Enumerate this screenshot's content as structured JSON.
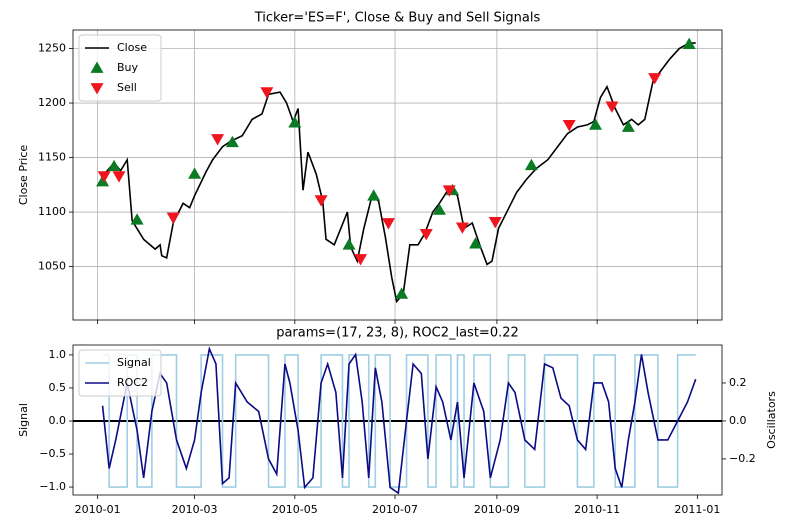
{
  "chart_data": [
    {
      "type": "line",
      "title": "Ticker='ES=F', Close & Buy and Sell Signals",
      "ylabel": "Close Price",
      "xlim": [
        "2009-12-17",
        "2011-01-16"
      ],
      "ylim": [
        1001,
        1267
      ],
      "xticks": [
        "2010-01-01",
        "2010-03-01",
        "2010-05-01",
        "2010-07-01",
        "2010-09-01",
        "2010-11-01",
        "2011-01-01"
      ],
      "yticks": [
        1050,
        1100,
        1150,
        1200,
        1250
      ],
      "grid": true,
      "legend": "upper left",
      "series": [
        {
          "name": "Close",
          "color": "#000000",
          "x": [
            "2010-01-04",
            "2010-01-11",
            "2010-01-15",
            "2010-01-19",
            "2010-01-22",
            "2010-01-29",
            "2010-02-05",
            "2010-02-08",
            "2010-02-09",
            "2010-02-12",
            "2010-02-16",
            "2010-02-22",
            "2010-02-26",
            "2010-03-01",
            "2010-03-08",
            "2010-03-12",
            "2010-03-18",
            "2010-03-23",
            "2010-03-30",
            "2010-04-05",
            "2010-04-11",
            "2010-04-15",
            "2010-04-22",
            "2010-04-26",
            "2010-04-30",
            "2010-05-03",
            "2010-05-06",
            "2010-05-09",
            "2010-05-14",
            "2010-05-18",
            "2010-05-20",
            "2010-05-25",
            "2010-05-29",
            "2010-06-02",
            "2010-06-04",
            "2010-06-08",
            "2010-06-12",
            "2010-06-17",
            "2010-06-21",
            "2010-06-25",
            "2010-06-29",
            "2010-07-02",
            "2010-07-06",
            "2010-07-10",
            "2010-07-15",
            "2010-07-19",
            "2010-07-24",
            "2010-07-28",
            "2010-08-03",
            "2010-08-08",
            "2010-08-12",
            "2010-08-17",
            "2010-08-22",
            "2010-08-26",
            "2010-08-29",
            "2010-09-02",
            "2010-09-07",
            "2010-09-13",
            "2010-09-19",
            "2010-09-25",
            "2010-10-02",
            "2010-10-08",
            "2010-10-14",
            "2010-10-20",
            "2010-10-26",
            "2010-10-30",
            "2010-11-03",
            "2010-11-07",
            "2010-11-12",
            "2010-11-17",
            "2010-11-22",
            "2010-11-26",
            "2010-11-30",
            "2010-12-05",
            "2010-12-09",
            "2010-12-15",
            "2010-12-21",
            "2010-12-27",
            "2010-12-31"
          ],
          "values": [
            1133,
            1145,
            1138,
            1148,
            1092,
            1075,
            1066,
            1070,
            1060,
            1058,
            1090,
            1108,
            1104,
            1115,
            1137,
            1148,
            1160,
            1165,
            1170,
            1185,
            1190,
            1208,
            1210,
            1200,
            1183,
            1195,
            1120,
            1155,
            1135,
            1110,
            1075,
            1070,
            1085,
            1100,
            1068,
            1055,
            1085,
            1115,
            1110,
            1078,
            1040,
            1018,
            1025,
            1070,
            1070,
            1080,
            1100,
            1108,
            1122,
            1115,
            1085,
            1090,
            1068,
            1052,
            1055,
            1085,
            1100,
            1118,
            1130,
            1140,
            1148,
            1160,
            1172,
            1178,
            1180,
            1183,
            1205,
            1215,
            1195,
            1180,
            1185,
            1180,
            1185,
            1220,
            1228,
            1240,
            1250,
            1255,
            1255
          ]
        },
        {
          "name": "Buy",
          "color": "#0a7a23",
          "marker": "^",
          "x": [
            "2010-01-04",
            "2010-01-11",
            "2010-01-25",
            "2010-03-01",
            "2010-03-24",
            "2010-05-01",
            "2010-06-03",
            "2010-06-18",
            "2010-07-05",
            "2010-07-28",
            "2010-08-05",
            "2010-08-19",
            "2010-09-22",
            "2010-10-31",
            "2010-11-20",
            "2010-12-27"
          ],
          "values": [
            1128,
            1142,
            1093,
            1135,
            1164,
            1182,
            1070,
            1115,
            1025,
            1102,
            1120,
            1071,
            1143,
            1180,
            1178,
            1254
          ]
        },
        {
          "name": "Sell",
          "color": "#f0141e",
          "marker": "v",
          "x": [
            "2010-01-05",
            "2010-01-14",
            "2010-02-16",
            "2010-03-15",
            "2010-04-14",
            "2010-05-17",
            "2010-06-10",
            "2010-06-27",
            "2010-07-20",
            "2010-08-03",
            "2010-08-11",
            "2010-08-31",
            "2010-10-15",
            "2010-11-10",
            "2010-12-06"
          ],
          "values": [
            1133,
            1133,
            1095,
            1167,
            1210,
            1111,
            1057,
            1090,
            1080,
            1120,
            1086,
            1091,
            1180,
            1197,
            1223
          ]
        }
      ]
    },
    {
      "type": "line",
      "title": "params=(17, 23, 8), ROC2_last=0.22",
      "ylabel": "Signal",
      "y2label": "Oscillators",
      "xlim": [
        "2009-12-17",
        "2011-01-16"
      ],
      "ylim": [
        -1.12,
        1.15
      ],
      "y2lim": [
        -0.39,
        0.4
      ],
      "xticks": [
        {
          "value": "2010-01-01",
          "label": "2010-01"
        },
        {
          "value": "2010-03-01",
          "label": "2010-03"
        },
        {
          "value": "2010-05-01",
          "label": "2010-05"
        },
        {
          "value": "2010-07-01",
          "label": "2010-07"
        },
        {
          "value": "2010-09-01",
          "label": "2010-09"
        },
        {
          "value": "2010-11-01",
          "label": "2010-11"
        },
        {
          "value": "2011-01-01",
          "label": "2011-01"
        }
      ],
      "yticks": [
        {
          "value": -1,
          "label": "−1.0"
        },
        {
          "value": -0.5,
          "label": "−0.5"
        },
        {
          "value": 0,
          "label": "0.0"
        },
        {
          "value": 0.5,
          "label": "0.5"
        },
        {
          "value": 1,
          "label": "1.0"
        }
      ],
      "y2ticks": [
        {
          "value": -0.2,
          "label": "−0.2"
        },
        {
          "value": 0,
          "label": "0.0"
        },
        {
          "value": 0.2,
          "label": "0.2"
        }
      ],
      "hline": 0,
      "grid": false,
      "legend": "upper left",
      "x": [
        "2010-01-04",
        "2010-01-08",
        "2010-01-12",
        "2010-01-19",
        "2010-01-25",
        "2010-01-29",
        "2010-02-03",
        "2010-02-08",
        "2010-02-12",
        "2010-02-18",
        "2010-02-24",
        "2010-03-01",
        "2010-03-05",
        "2010-03-10",
        "2010-03-14",
        "2010-03-18",
        "2010-03-22",
        "2010-03-26",
        "2010-04-02",
        "2010-04-09",
        "2010-04-15",
        "2010-04-20",
        "2010-04-25",
        "2010-04-28",
        "2010-05-03",
        "2010-05-07",
        "2010-05-12",
        "2010-05-17",
        "2010-05-21",
        "2010-05-26",
        "2010-05-30",
        "2010-06-03",
        "2010-06-07",
        "2010-06-11",
        "2010-06-15",
        "2010-06-19",
        "2010-06-23",
        "2010-06-28",
        "2010-07-03",
        "2010-07-08",
        "2010-07-12",
        "2010-07-17",
        "2010-07-21",
        "2010-07-26",
        "2010-07-30",
        "2010-08-04",
        "2010-08-08",
        "2010-08-12",
        "2010-08-18",
        "2010-08-24",
        "2010-08-28",
        "2010-09-03",
        "2010-09-08",
        "2010-09-12",
        "2010-09-18",
        "2010-09-24",
        "2010-09-30",
        "2010-10-05",
        "2010-10-10",
        "2010-10-15",
        "2010-10-20",
        "2010-10-25",
        "2010-10-30",
        "2010-11-04",
        "2010-11-08",
        "2010-11-12",
        "2010-11-16",
        "2010-11-20",
        "2010-11-24",
        "2010-11-28",
        "2010-12-02",
        "2010-12-08",
        "2010-12-14",
        "2010-12-20",
        "2010-12-26",
        "2010-12-31"
      ],
      "series": [
        {
          "name": "Signal",
          "color": "#9fcfe3",
          "drawstyle": "steps-post",
          "values": [
            1,
            -1,
            -1,
            1,
            -1,
            -1,
            1,
            1,
            1,
            -1,
            -1,
            -1,
            1,
            1,
            1,
            -1,
            -1,
            1,
            1,
            1,
            -1,
            -1,
            1,
            1,
            -1,
            -1,
            -1,
            1,
            1,
            1,
            -1,
            1,
            1,
            1,
            -1,
            1,
            1,
            -1,
            -1,
            1,
            1,
            1,
            -1,
            1,
            1,
            -1,
            1,
            -1,
            1,
            1,
            -1,
            -1,
            1,
            1,
            -1,
            -1,
            1,
            1,
            1,
            1,
            -1,
            -1,
            1,
            1,
            1,
            -1,
            -1,
            -1,
            1,
            1,
            1,
            -1,
            -1,
            1,
            1,
            1
          ]
        },
        {
          "name": "ROC2",
          "color": "#0b0b85",
          "axis": "y2",
          "values": [
            0.08,
            -0.25,
            -0.1,
            0.2,
            -0.05,
            -0.3,
            0.05,
            0.25,
            0.2,
            -0.1,
            -0.25,
            -0.1,
            0.15,
            0.38,
            0.3,
            -0.33,
            -0.3,
            0.2,
            0.1,
            0.05,
            -0.2,
            -0.28,
            0.3,
            0.2,
            -0.05,
            -0.35,
            -0.3,
            0.2,
            0.3,
            0.15,
            -0.3,
            0.3,
            0.35,
            0.1,
            -0.3,
            0.28,
            0.1,
            -0.35,
            -0.38,
            0.0,
            0.3,
            0.25,
            -0.2,
            0.18,
            0.1,
            -0.1,
            0.1,
            -0.3,
            0.2,
            0.05,
            -0.3,
            -0.1,
            0.2,
            0.15,
            -0.1,
            -0.15,
            0.3,
            0.28,
            0.12,
            0.08,
            -0.1,
            -0.15,
            0.2,
            0.2,
            0.1,
            -0.25,
            -0.35,
            -0.1,
            0.1,
            0.35,
            0.15,
            -0.1,
            -0.1,
            0.0,
            0.1,
            0.22
          ]
        }
      ]
    }
  ]
}
